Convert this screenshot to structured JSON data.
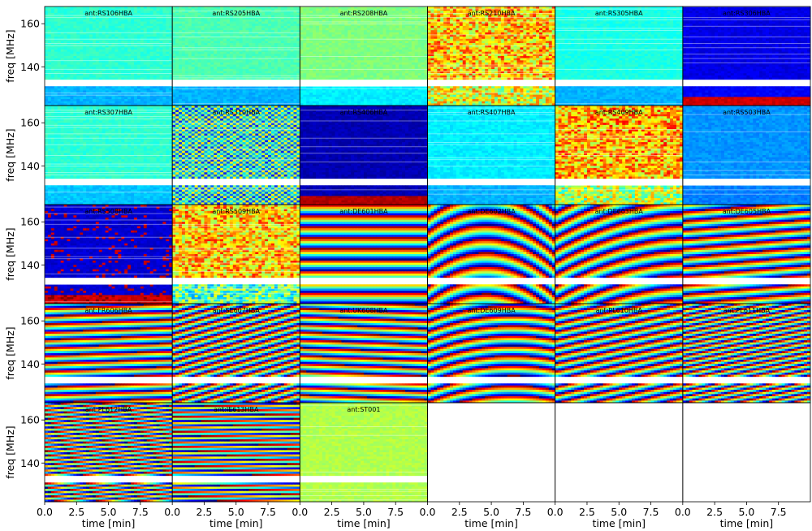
{
  "figure": {
    "ylabel": "freq [MHz]",
    "xlabel": "time [min]",
    "rows": 5,
    "cols": 6
  },
  "chart_data": {
    "type": "heatmap",
    "title": "",
    "xlabel": "time [min]",
    "ylabel": "freq [MHz]",
    "xlim": [
      0,
      10
    ],
    "ylim": [
      122,
      168
    ],
    "xticks": [
      "0.0",
      "2.5",
      "5.0",
      "7.5"
    ],
    "yticks": [
      "160",
      "140"
    ],
    "data_gap_mhz": [
      131,
      134
    ],
    "colormap": [
      "#00007f",
      "#0000ff",
      "#007fff",
      "#00ffff",
      "#7fff7f",
      "#ffff00",
      "#ff7f00",
      "#ff0000",
      "#7f0000"
    ],
    "panels": [
      {
        "antenna": "ant:RS106HBA",
        "pattern": "flat",
        "level": 0.42,
        "low_level": 0.3
      },
      {
        "antenna": "ant:RS205HBA",
        "pattern": "flat",
        "level": 0.45,
        "low_level": 0.3
      },
      {
        "antenna": "ant:RS208HBA",
        "pattern": "flat",
        "level": 0.5,
        "low_level": 0.36
      },
      {
        "antenna": "ant:RS210HBA",
        "pattern": "noisy",
        "level": 0.68,
        "low_level": 0.6
      },
      {
        "antenna": "ant:RS305HBA",
        "pattern": "flat",
        "level": 0.4,
        "low_level": 0.3
      },
      {
        "antenna": "ant:RS306HBA",
        "pattern": "flat",
        "level": 0.1,
        "low_level": 0.12,
        "bottom_level": 0.92
      },
      {
        "antenna": "ant:RS307HBA",
        "pattern": "flat",
        "level": 0.42,
        "low_level": 0.32
      },
      {
        "antenna": "ant:RS310HBA",
        "pattern": "checker",
        "level": 0.4,
        "low_level": 0.35
      },
      {
        "antenna": "ant:RS406HBA",
        "pattern": "flat",
        "level": 0.05,
        "low_level": 0.05,
        "bottom_level": 0.95
      },
      {
        "antenna": "ant:RS407HBA",
        "pattern": "flat",
        "level": 0.36,
        "low_level": 0.3
      },
      {
        "antenna": "ant:RS409HBA",
        "pattern": "noisy",
        "level": 0.7,
        "low_level": 0.55
      },
      {
        "antenna": "ant:RS503HBA",
        "pattern": "flat",
        "level": 0.27,
        "low_level": 0.25
      },
      {
        "antenna": "ant:RS508HBA",
        "pattern": "speckle",
        "level": 0.08,
        "low_level": 0.08,
        "bottom_level": 0.92
      },
      {
        "antenna": "ant:RS509HBA",
        "pattern": "noisy",
        "level": 0.68,
        "low_level": 0.45
      },
      {
        "antenna": "ant:DE601HBA",
        "pattern": "fringes",
        "slope": 0.0,
        "density": 1.0,
        "curve": 0.0
      },
      {
        "antenna": "ant:DE602HBA",
        "pattern": "fringes",
        "slope": 0.1,
        "density": 0.8,
        "curve": 1.2
      },
      {
        "antenna": "ant:DE603HBA",
        "pattern": "fringes",
        "slope": -0.5,
        "density": 0.9,
        "curve": 0.4
      },
      {
        "antenna": "ant:DE605HBA",
        "pattern": "fringes",
        "slope": -0.2,
        "density": 1.2,
        "curve": 0.0
      },
      {
        "antenna": "ant:FR606HBA",
        "pattern": "fringes",
        "slope": -0.1,
        "density": 1.4,
        "curve": 0.0
      },
      {
        "antenna": "ant:SE607HBA",
        "pattern": "fringes",
        "slope": -0.9,
        "density": 1.6,
        "curve": 0.0
      },
      {
        "antenna": "ant:UK608HBA",
        "pattern": "fringes",
        "slope": 0.1,
        "density": 1.4,
        "curve": 0.0
      },
      {
        "antenna": "ant:DE609HBA",
        "pattern": "fringes",
        "slope": -0.2,
        "density": 1.1,
        "curve": 0.6
      },
      {
        "antenna": "ant:PL610HBA",
        "pattern": "fringes",
        "slope": -0.6,
        "density": 1.4,
        "curve": 0.0
      },
      {
        "antenna": "ant:PL611HBA",
        "pattern": "fringes",
        "slope": -0.8,
        "density": 1.9,
        "curve": 0.0
      },
      {
        "antenna": "ant:PL612HBA",
        "pattern": "fringes",
        "slope": -0.5,
        "density": 2.4,
        "curve": 0.0
      },
      {
        "antenna": "ant:IE613HBA",
        "pattern": "fringes",
        "slope": -0.1,
        "density": 2.2,
        "curve": 0.0
      },
      {
        "antenna": "ant:ST001",
        "pattern": "flat",
        "level": 0.55,
        "low_level": 0.55
      },
      {
        "antenna": "",
        "pattern": "empty"
      },
      {
        "antenna": "",
        "pattern": "empty"
      },
      {
        "antenna": "",
        "pattern": "empty"
      }
    ]
  }
}
